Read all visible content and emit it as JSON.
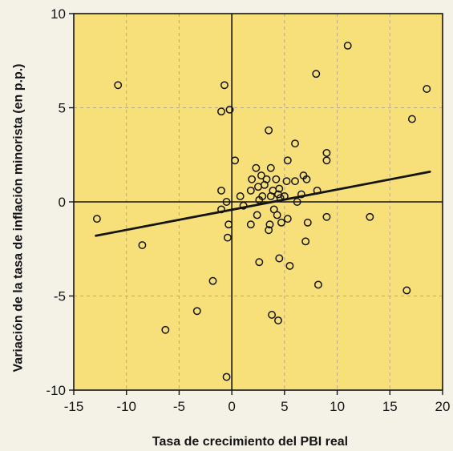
{
  "colors": {
    "page_background": "#f4f1e6",
    "plot_background": "#f7df79",
    "grid": "#b8a890",
    "ink": "#141414"
  },
  "chart_data": {
    "type": "scatter",
    "title": "",
    "xlabel": "Tasa de crecimiento del PBI real",
    "ylabel": "Variación de la tasa de inflación minorista (en p.p.)",
    "xlim": [
      -15,
      20
    ],
    "ylim": [
      -10,
      10
    ],
    "x_ticks": [
      -15,
      -10,
      -5,
      0,
      5,
      10,
      15,
      20
    ],
    "y_ticks": [
      -10,
      -5,
      0,
      5,
      10
    ],
    "x_tick_labels": [
      "-15",
      "-10",
      "-5",
      "0",
      "5",
      "10",
      "15",
      "20"
    ],
    "y_tick_labels": [
      "-10",
      "-5",
      "0",
      "5",
      "10"
    ],
    "grid": true,
    "reference_lines": {
      "x": 0,
      "y": 0
    },
    "trend_line": {
      "x": [
        -12.9,
        18.8
      ],
      "y": [
        -1.8,
        1.6
      ]
    },
    "points": [
      {
        "x": 11.0,
        "y": 8.3
      },
      {
        "x": 8.0,
        "y": 6.8
      },
      {
        "x": -10.8,
        "y": 6.2
      },
      {
        "x": -0.7,
        "y": 6.2
      },
      {
        "x": 18.5,
        "y": 6.0
      },
      {
        "x": -1.0,
        "y": 4.8
      },
      {
        "x": -0.2,
        "y": 4.9
      },
      {
        "x": 17.1,
        "y": 4.4
      },
      {
        "x": 3.5,
        "y": 3.8
      },
      {
        "x": 6.0,
        "y": 3.1
      },
      {
        "x": 9.0,
        "y": 2.6
      },
      {
        "x": 9.0,
        "y": 2.2
      },
      {
        "x": 5.3,
        "y": 2.2
      },
      {
        "x": 0.3,
        "y": 2.2
      },
      {
        "x": 2.3,
        "y": 1.8
      },
      {
        "x": 3.7,
        "y": 1.8
      },
      {
        "x": 2.8,
        "y": 1.4
      },
      {
        "x": 4.2,
        "y": 1.2
      },
      {
        "x": 7.1,
        "y": 1.2
      },
      {
        "x": 1.9,
        "y": 1.2
      },
      {
        "x": 3.3,
        "y": 1.2
      },
      {
        "x": 5.2,
        "y": 1.1
      },
      {
        "x": 6.8,
        "y": 1.4
      },
      {
        "x": 6.0,
        "y": 1.1
      },
      {
        "x": 3.1,
        "y": 0.9
      },
      {
        "x": 2.5,
        "y": 0.8
      },
      {
        "x": 4.5,
        "y": 0.7
      },
      {
        "x": 3.9,
        "y": 0.6
      },
      {
        "x": 1.8,
        "y": 0.6
      },
      {
        "x": 8.1,
        "y": 0.6
      },
      {
        "x": 4.4,
        "y": 0.4
      },
      {
        "x": 2.9,
        "y": 0.3
      },
      {
        "x": 0.8,
        "y": 0.3
      },
      {
        "x": 3.7,
        "y": 0.3
      },
      {
        "x": 6.6,
        "y": 0.4
      },
      {
        "x": 5.0,
        "y": 0.3
      },
      {
        "x": -1.0,
        "y": 0.6
      },
      {
        "x": 4.6,
        "y": 0.2
      },
      {
        "x": 2.6,
        "y": 0.1
      },
      {
        "x": 6.2,
        "y": 0.0
      },
      {
        "x": -0.5,
        "y": 0.0
      },
      {
        "x": 1.1,
        "y": -0.2
      },
      {
        "x": -1.0,
        "y": -0.4
      },
      {
        "x": 4.0,
        "y": -0.4
      },
      {
        "x": 2.4,
        "y": -0.7
      },
      {
        "x": 4.3,
        "y": -0.7
      },
      {
        "x": 5.3,
        "y": -0.9
      },
      {
        "x": 7.2,
        "y": -1.1
      },
      {
        "x": 9.0,
        "y": -0.8
      },
      {
        "x": 13.1,
        "y": -0.8
      },
      {
        "x": -12.8,
        "y": -0.9
      },
      {
        "x": -0.3,
        "y": -1.2
      },
      {
        "x": 1.8,
        "y": -1.2
      },
      {
        "x": 3.6,
        "y": -1.2
      },
      {
        "x": 4.7,
        "y": -1.1
      },
      {
        "x": 3.5,
        "y": -1.5
      },
      {
        "x": -0.4,
        "y": -1.9
      },
      {
        "x": 7.0,
        "y": -2.1
      },
      {
        "x": -8.5,
        "y": -2.3
      },
      {
        "x": 4.5,
        "y": -3.0
      },
      {
        "x": 2.6,
        "y": -3.2
      },
      {
        "x": 5.5,
        "y": -3.4
      },
      {
        "x": -1.8,
        "y": -4.2
      },
      {
        "x": 8.2,
        "y": -4.4
      },
      {
        "x": 16.6,
        "y": -4.7
      },
      {
        "x": -3.3,
        "y": -5.8
      },
      {
        "x": 3.8,
        "y": -6.0
      },
      {
        "x": 4.4,
        "y": -6.3
      },
      {
        "x": -6.3,
        "y": -6.8
      },
      {
        "x": -0.5,
        "y": -9.3
      }
    ]
  }
}
